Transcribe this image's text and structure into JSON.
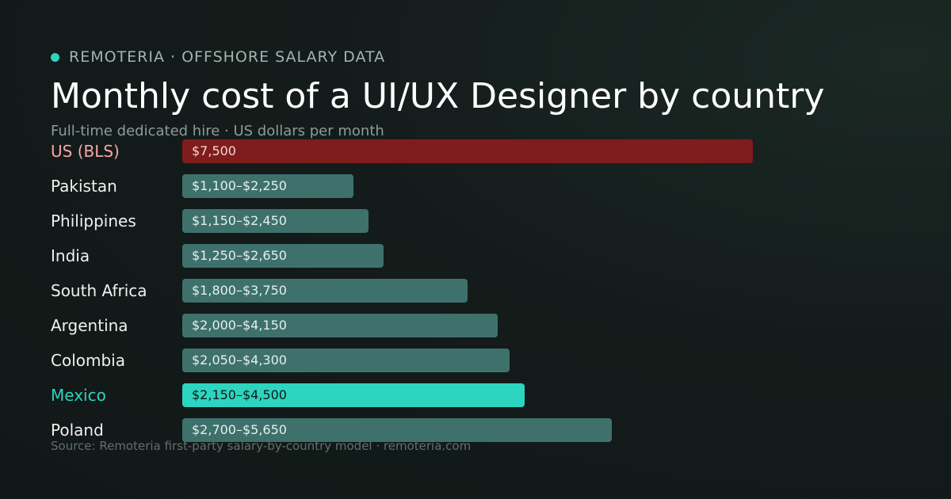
{
  "header": {
    "eyebrow": "REMOTERIA · OFFSHORE SALARY DATA",
    "title": "Monthly cost of a UI/UX Designer by country",
    "subtitle": "Full-time dedicated hire · US dollars per month"
  },
  "footer": {
    "source": "Source: Remoteria first-party salary-by-country model · remoteria.com"
  },
  "colors": {
    "accent": "#2dd4bf",
    "us_bar": "#7f1d1d",
    "us_label": "#fca5a5",
    "default_bar": "#3e716c",
    "default_label": "#f0f0f0",
    "highlight_bar_text": "#0f1a18"
  },
  "chart_data": {
    "type": "bar",
    "orientation": "horizontal",
    "title": "Monthly cost of a UI/UX Designer by country",
    "subtitle": "Full-time dedicated hire · US dollars per month",
    "unit": "USD per month",
    "categories": [
      "US (BLS)",
      "Pakistan",
      "Philippines",
      "India",
      "South Africa",
      "Argentina",
      "Colombia",
      "Mexico",
      "Poland"
    ],
    "bars": [
      {
        "category": "US (BLS)",
        "low": 7500,
        "high": 7500,
        "label": "$7,500",
        "style": "us"
      },
      {
        "category": "Pakistan",
        "low": 1100,
        "high": 2250,
        "label": "$1,100–$2,250",
        "style": "default"
      },
      {
        "category": "Philippines",
        "low": 1150,
        "high": 2450,
        "label": "$1,150–$2,450",
        "style": "default"
      },
      {
        "category": "India",
        "low": 1250,
        "high": 2650,
        "label": "$1,250–$2,650",
        "style": "default"
      },
      {
        "category": "South Africa",
        "low": 1800,
        "high": 3750,
        "label": "$1,800–$3,750",
        "style": "default"
      },
      {
        "category": "Argentina",
        "low": 2000,
        "high": 4150,
        "label": "$2,000–$4,150",
        "style": "default"
      },
      {
        "category": "Colombia",
        "low": 2050,
        "high": 4300,
        "label": "$2,050–$4,300",
        "style": "default"
      },
      {
        "category": "Mexico",
        "low": 2150,
        "high": 4500,
        "label": "$2,150–$4,500",
        "style": "highlight"
      },
      {
        "category": "Poland",
        "low": 2700,
        "high": 5650,
        "label": "$2,700–$5,650",
        "style": "default"
      }
    ],
    "xlim": [
      0,
      7500
    ],
    "grid": false,
    "legend": "none"
  }
}
